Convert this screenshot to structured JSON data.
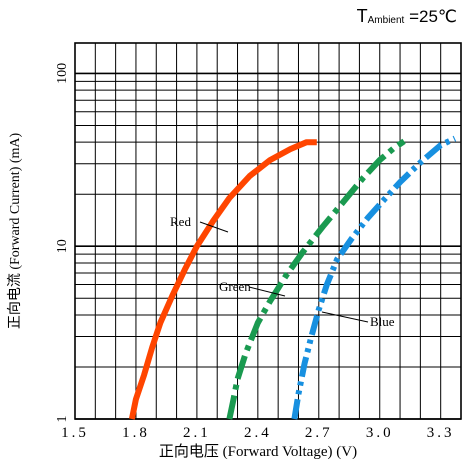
{
  "chart_data": {
    "type": "line",
    "title": "",
    "condition": {
      "symbol": "T",
      "subscript": "Ambient",
      "value": "=25℃"
    },
    "xlabel": "正向电压 (Forward Voltage) (V)",
    "ylabel": "正向电流 (Forward Current) (mA)",
    "xlim": [
      1.5,
      3.4
    ],
    "ylim": [
      1,
      150
    ],
    "yscale": "log",
    "grid": true,
    "x_ticks": [
      "1.5",
      "1.8",
      "2.1",
      "2.4",
      "2.7",
      "3.0",
      "3.3"
    ],
    "x_tick_values": [
      1.5,
      1.8,
      2.1,
      2.4,
      2.7,
      3.0,
      3.3
    ],
    "y_ticks": [
      "1",
      "10",
      "100"
    ],
    "y_tick_values": [
      1,
      10,
      100
    ],
    "series": [
      {
        "name": "Red",
        "color": "#ff4500",
        "style": "solid",
        "points": [
          [
            1.78,
            1
          ],
          [
            1.8,
            1.3
          ],
          [
            1.84,
            1.8
          ],
          [
            1.88,
            2.6
          ],
          [
            1.92,
            3.6
          ],
          [
            1.98,
            5.2
          ],
          [
            2.04,
            7.3
          ],
          [
            2.1,
            10
          ],
          [
            2.18,
            14
          ],
          [
            2.26,
            19
          ],
          [
            2.36,
            25.5
          ],
          [
            2.46,
            31.5
          ],
          [
            2.56,
            36.5
          ],
          [
            2.64,
            40
          ],
          [
            2.69,
            40
          ]
        ]
      },
      {
        "name": "Green",
        "color": "#1a9a50",
        "style": "dashdot",
        "points": [
          [
            2.26,
            1
          ],
          [
            2.28,
            1.3
          ],
          [
            2.3,
            1.7
          ],
          [
            2.34,
            2.4
          ],
          [
            2.4,
            3.6
          ],
          [
            2.46,
            4.8
          ],
          [
            2.54,
            6.8
          ],
          [
            2.62,
            9.2
          ],
          [
            2.72,
            13
          ],
          [
            2.82,
            18
          ],
          [
            2.92,
            25
          ],
          [
            3.0,
            31.5
          ],
          [
            3.07,
            37
          ],
          [
            3.12,
            40.5
          ]
        ]
      },
      {
        "name": "Blue",
        "color": "#1890e0",
        "style": "dashdotdot",
        "points": [
          [
            2.58,
            1
          ],
          [
            2.6,
            1.4
          ],
          [
            2.63,
            2.1
          ],
          [
            2.66,
            2.9
          ],
          [
            2.7,
            4.3
          ],
          [
            2.74,
            6
          ],
          [
            2.79,
            8.4
          ],
          [
            2.86,
            11
          ],
          [
            2.94,
            14.5
          ],
          [
            3.02,
            18.5
          ],
          [
            3.1,
            23.5
          ],
          [
            3.2,
            30.5
          ],
          [
            3.3,
            38.5
          ],
          [
            3.37,
            42
          ]
        ]
      }
    ],
    "annotations": [
      {
        "text": "Red",
        "series": "Red"
      },
      {
        "text": "Green",
        "series": "Green"
      },
      {
        "text": "Blue",
        "series": "Blue"
      }
    ]
  }
}
